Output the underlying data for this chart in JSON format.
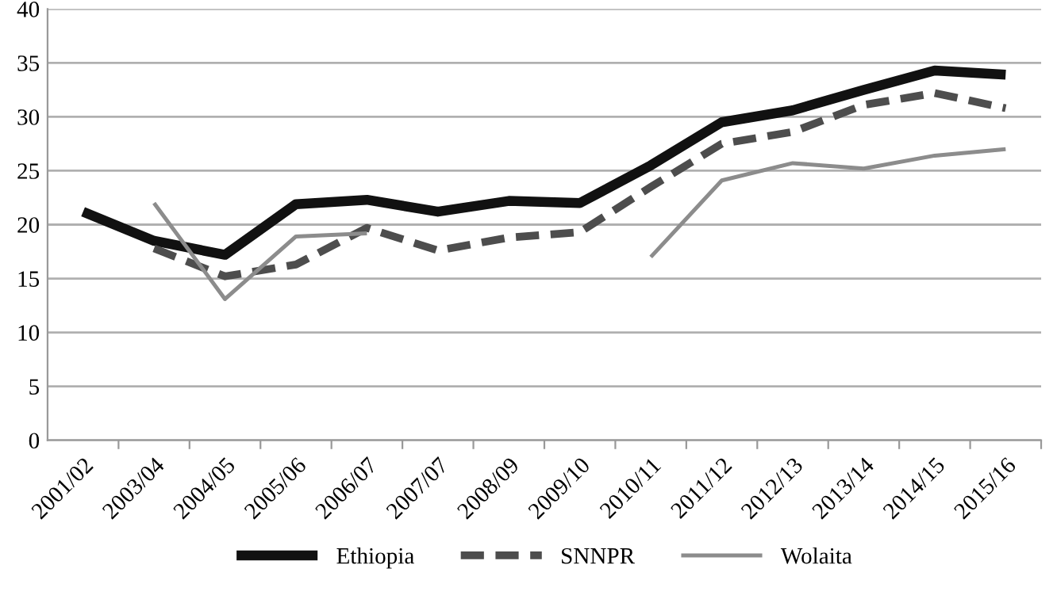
{
  "chart_data": {
    "type": "line",
    "categories": [
      "2001/02",
      "2003/04",
      "2004/05",
      "2005/06",
      "2006/07",
      "2007/07",
      "2008/09",
      "2009/10",
      "2010/11",
      "2011/12",
      "2012/13",
      "2013/14",
      "2014/15",
      "2015/16"
    ],
    "series": [
      {
        "name": "Ethiopia",
        "color": "#111111",
        "line_style": "solid",
        "values": [
          21.2,
          18.5,
          17.2,
          21.9,
          22.3,
          21.2,
          22.2,
          22.0,
          25.5,
          29.5,
          30.6,
          32.5,
          34.3,
          33.9
        ]
      },
      {
        "name": "SNNPR",
        "color": "#4d4d4d",
        "line_style": "dashed",
        "values": [
          null,
          17.8,
          15.2,
          16.3,
          19.7,
          17.6,
          18.8,
          19.3,
          23.5,
          27.5,
          28.6,
          31.1,
          32.2,
          30.8
        ]
      },
      {
        "name": "Wolaita",
        "color": "#8c8c8c",
        "line_style": "solid",
        "values": [
          null,
          22.0,
          13.1,
          18.9,
          19.2,
          null,
          null,
          null,
          17.0,
          24.1,
          25.7,
          25.2,
          26.4,
          27.0
        ]
      }
    ],
    "ylim": [
      0,
      40
    ],
    "yticks": [
      0,
      5,
      10,
      15,
      20,
      25,
      30,
      35,
      40
    ],
    "grid": "y",
    "legend": "bottom",
    "marker": "none"
  }
}
